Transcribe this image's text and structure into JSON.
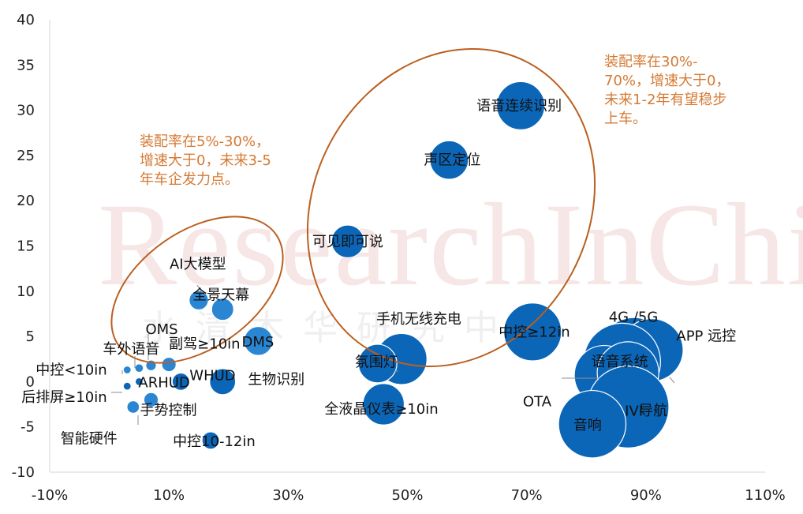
{
  "watermark": {
    "logo_text": "ResearchInChina",
    "cn_text": "水清木华研究中心"
  },
  "colors": {
    "bubble_primary": "#0b66b8",
    "bubble_light": "#2a86d2",
    "ellipse": "#bb5f1f",
    "annotation": "#d57a34"
  },
  "annotations": {
    "left_group": [
      "装配率在5%-30%，",
      "增速大于0，未来3-5",
      "年车企发力点。"
    ],
    "right_group": [
      "装配率在30%-",
      "70%，增速大于0，",
      "未来1-2年有望稳步",
      "上车。"
    ]
  },
  "chart_data": {
    "type": "scatter",
    "xlim": [
      -10,
      110
    ],
    "ylim": [
      -10,
      40
    ],
    "x_ticks": [
      -10,
      10,
      30,
      50,
      70,
      90,
      110
    ],
    "x_tick_labels": [
      "-10%",
      "10%",
      "30%",
      "50%",
      "70%",
      "90%",
      "110%"
    ],
    "y_ticks": [
      -10,
      -5,
      0,
      5,
      10,
      15,
      20,
      25,
      30,
      35,
      40
    ],
    "y_tick_labels": [
      "-10",
      "-5",
      "0",
      "5",
      "10",
      "15",
      "20",
      "25",
      "30",
      "35",
      "40"
    ],
    "points": [
      {
        "label": "中控<10in",
        "x": 3,
        "y": 1.3,
        "size": 0.7
      },
      {
        "label": "车外语音",
        "x": 5,
        "y": 1.5,
        "size": 0.9
      },
      {
        "label": "OMS",
        "x": 7,
        "y": 1.8,
        "size": 1.1
      },
      {
        "label": "副驾≥10in",
        "x": 10,
        "y": 1.9,
        "size": 1.5
      },
      {
        "label": "ARHUD",
        "x": 5,
        "y": 0,
        "size": 0.8
      },
      {
        "label": "后排屏≥10in",
        "x": 3,
        "y": -0.5,
        "size": 0.7
      },
      {
        "label": "手势控制",
        "x": 7,
        "y": -2,
        "size": 1.5
      },
      {
        "label": "智能硬件",
        "x": 4,
        "y": -2.8,
        "size": 1.3
      },
      {
        "label": "中控10-12in",
        "x": 17,
        "y": -6.5,
        "size": 1.8
      },
      {
        "label": "WHUD",
        "x": 12,
        "y": 0,
        "size": 1.8
      },
      {
        "label": "生物识别",
        "x": 19,
        "y": 0,
        "size": 2.7
      },
      {
        "label": "AI大模型",
        "x": 15,
        "y": 9,
        "size": 2.0
      },
      {
        "label": "全景天幕",
        "x": 19,
        "y": 8,
        "size": 2.3
      },
      {
        "label": "DMS",
        "x": 25,
        "y": 4.5,
        "size": 3.0
      },
      {
        "label": "可见即可说",
        "x": 40,
        "y": 15.5,
        "size": 3.4
      },
      {
        "label": "声区定位",
        "x": 57,
        "y": 24.5,
        "size": 4.0
      },
      {
        "label": "语音连续识别",
        "x": 69,
        "y": 30.5,
        "size": 5.0
      },
      {
        "label": "手机无线充电",
        "x": 49,
        "y": 2.5,
        "size": 5.3
      },
      {
        "label": "氛围灯",
        "x": 45,
        "y": 2,
        "size": 4.0
      },
      {
        "label": "全液晶仪表≥10in",
        "x": 46,
        "y": -2.5,
        "size": 4.3
      },
      {
        "label": "中控≥12in",
        "x": 71,
        "y": 5.5,
        "size": 6.0
      },
      {
        "label": "4G /5G",
        "x": 88,
        "y": 3.2,
        "size": 7.3
      },
      {
        "label": "APP 远控",
        "x": 91,
        "y": 3.5,
        "size": 6.5
      },
      {
        "label": "语音系统",
        "x": 86,
        "y": 2.2,
        "size": 8.0
      },
      {
        "label": "OTA",
        "x": 83,
        "y": 0.7,
        "size": 6.2
      },
      {
        "label": "导航",
        "x": 87,
        "y": 1.0,
        "size": 6.4
      },
      {
        "label": "IVI",
        "x": 87,
        "y": -2.8,
        "size": 8.5
      },
      {
        "label": "音响",
        "x": 81,
        "y": -4.7,
        "size": 7.0
      }
    ]
  }
}
